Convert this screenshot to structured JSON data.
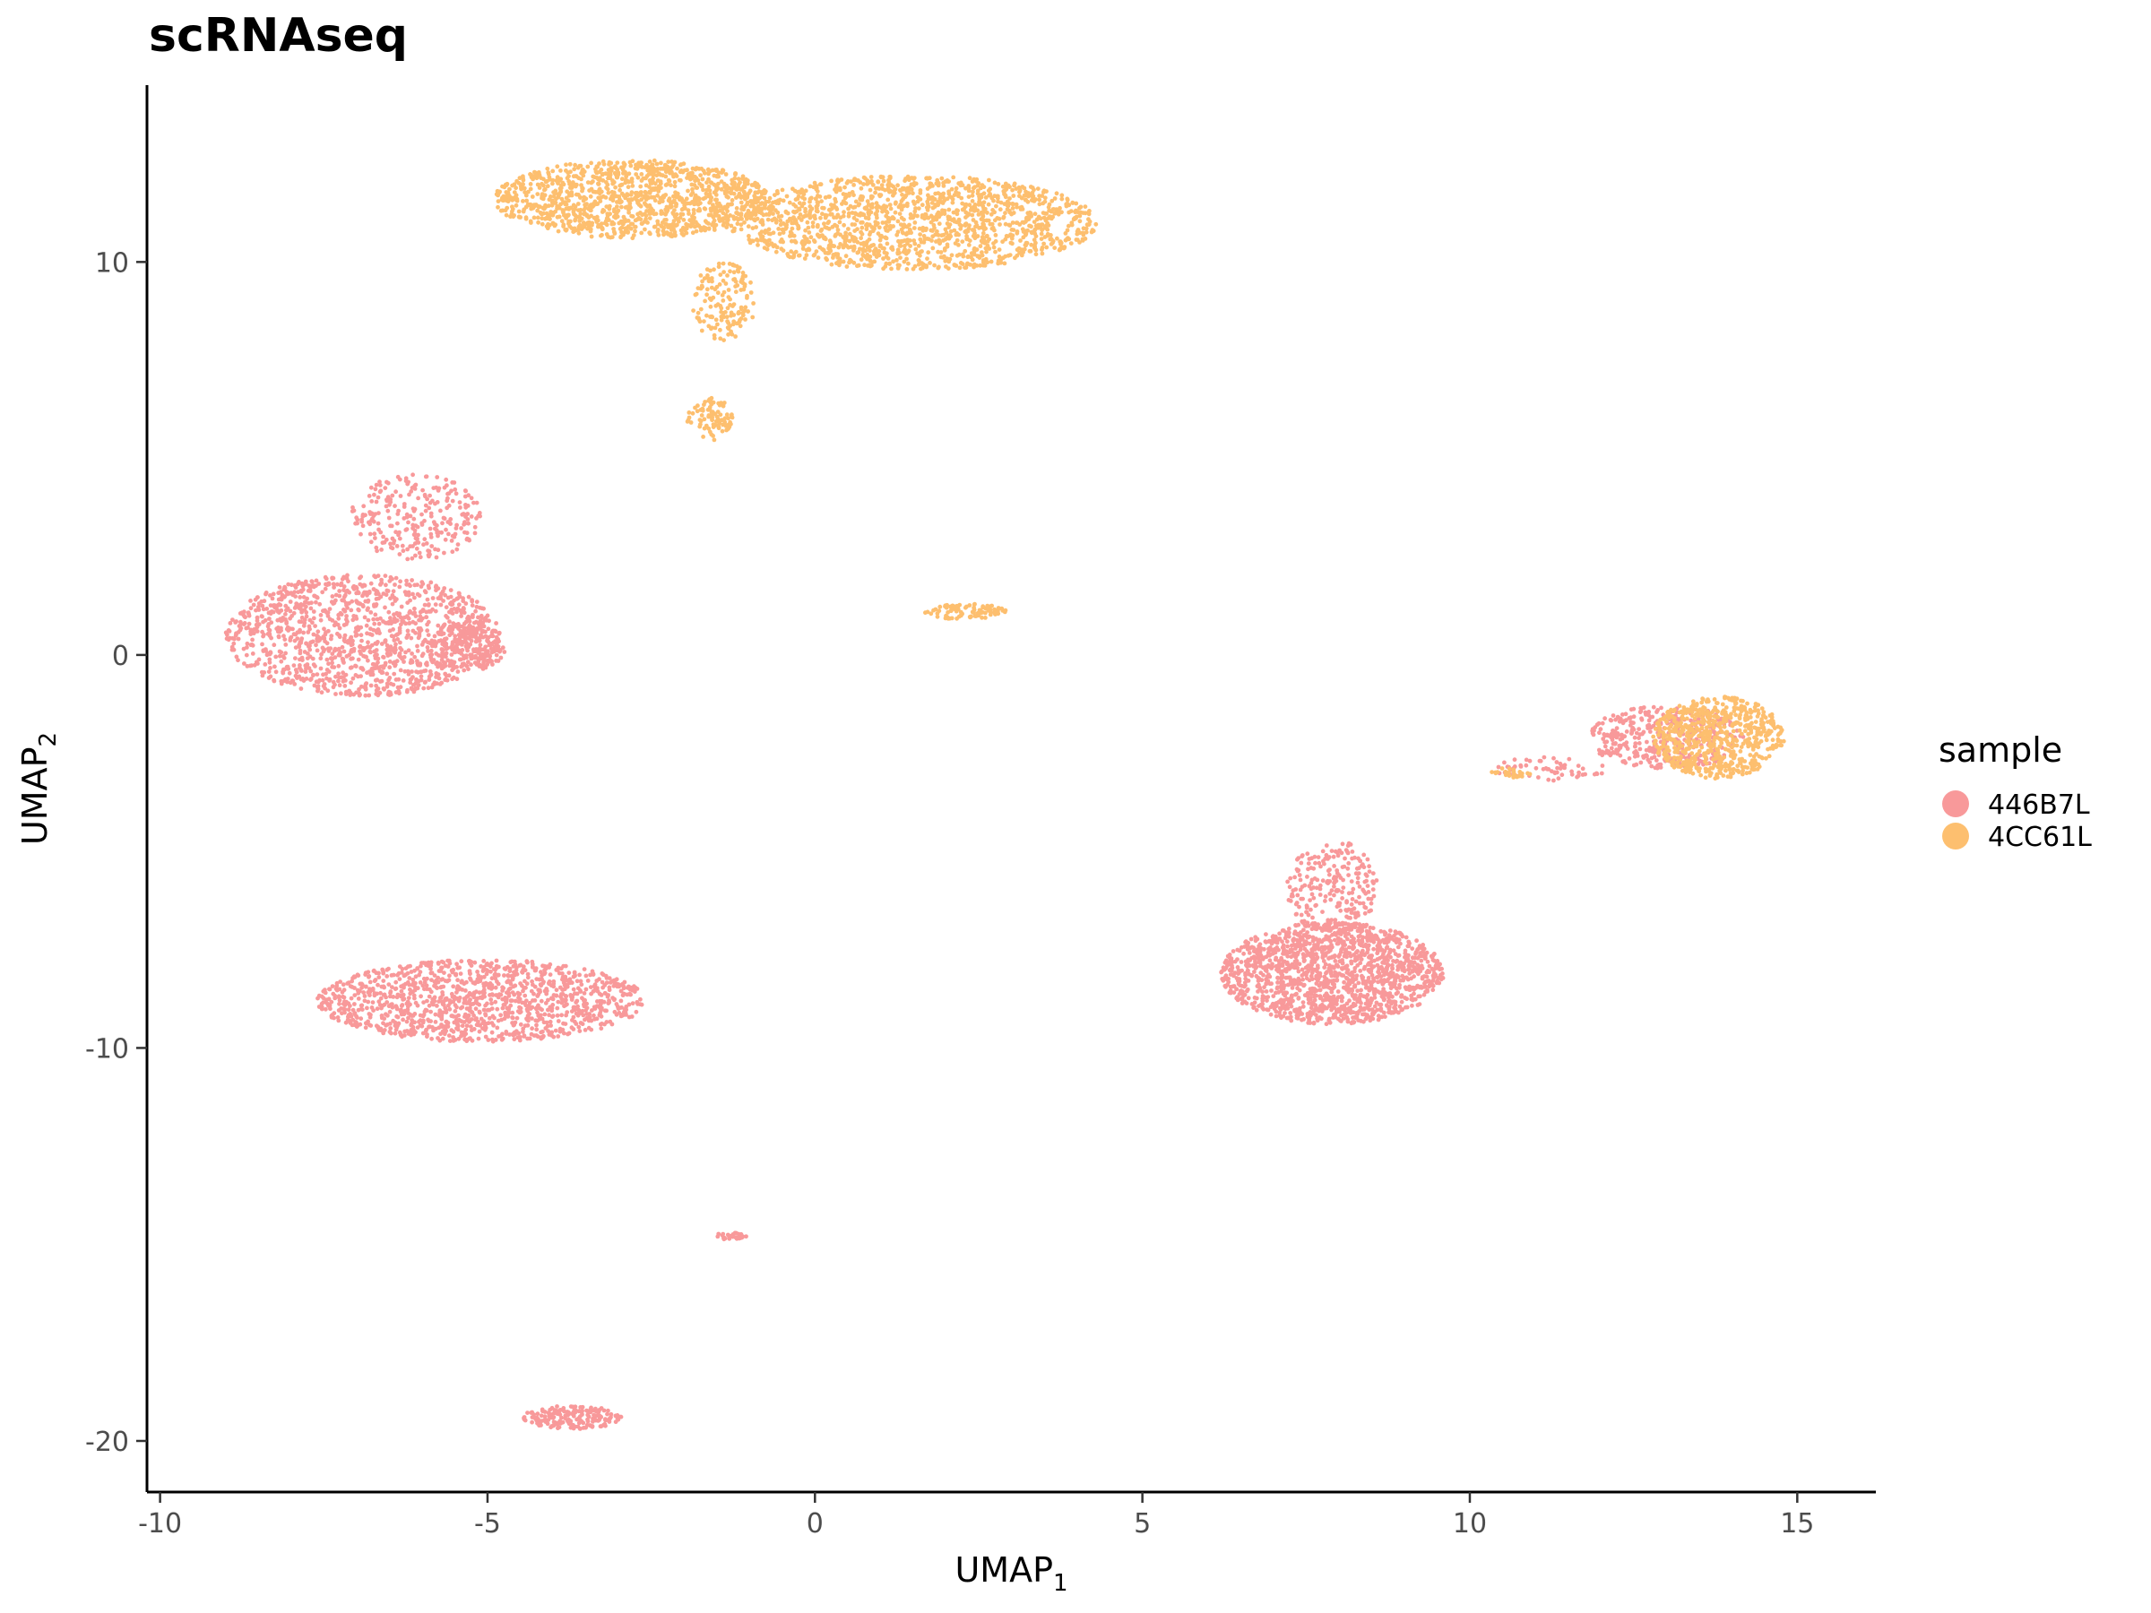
{
  "chart_data": {
    "type": "scatter",
    "title": "scRNAseq",
    "xlabel": "UMAP",
    "xlabel_sub": "1",
    "ylabel": "UMAP",
    "ylabel_sub": "2",
    "xlim": [
      -10.2,
      16.2
    ],
    "ylim": [
      -21.3,
      14.5
    ],
    "x_ticks": [
      -10,
      -5,
      0,
      5,
      10,
      15
    ],
    "x_tick_labels": [
      "-10",
      "-5",
      "0",
      "5",
      "10",
      "15"
    ],
    "y_ticks": [
      10,
      0,
      -10,
      -20
    ],
    "y_tick_labels": [
      "10",
      "0",
      "-10",
      "-20"
    ],
    "grid": false,
    "legend": {
      "title": "sample",
      "position": "right",
      "entries": [
        {
          "label": "446B7L",
          "color": "#F8999A"
        },
        {
          "label": "4CC61L",
          "color": "#FDBF6F"
        }
      ]
    },
    "series": [
      {
        "name": "446B7L",
        "color": "#F8999A",
        "clusters": [
          {
            "cx": -6.9,
            "cy": 0.5,
            "rx": 2.1,
            "ry": 1.55,
            "n": 1300
          },
          {
            "cx": -6.1,
            "cy": 3.5,
            "rx": 1.0,
            "ry": 1.1,
            "n": 260
          },
          {
            "cx": -5.3,
            "cy": 0.2,
            "rx": 0.6,
            "ry": 0.6,
            "n": 160
          },
          {
            "cx": -5.1,
            "cy": -8.8,
            "rx": 2.5,
            "ry": 1.05,
            "n": 1250
          },
          {
            "cx": 7.9,
            "cy": -8.1,
            "rx": 1.7,
            "ry": 1.3,
            "n": 1500
          },
          {
            "cx": 7.9,
            "cy": -5.9,
            "rx": 0.7,
            "ry": 1.2,
            "n": 240
          },
          {
            "cx": 13.0,
            "cy": -2.1,
            "rx": 1.2,
            "ry": 0.8,
            "n": 380
          },
          {
            "cx": 11.2,
            "cy": -2.9,
            "rx": 0.9,
            "ry": 0.3,
            "n": 60
          },
          {
            "cx": -1.3,
            "cy": -14.8,
            "rx": 0.25,
            "ry": 0.1,
            "n": 30
          },
          {
            "cx": -3.7,
            "cy": -19.4,
            "rx": 0.75,
            "ry": 0.3,
            "n": 180
          }
        ]
      },
      {
        "name": "4CC61L",
        "color": "#FDBF6F",
        "clusters": [
          {
            "cx": -2.8,
            "cy": 11.6,
            "rx": 2.1,
            "ry": 1.0,
            "n": 1200
          },
          {
            "cx": 1.5,
            "cy": 11.0,
            "rx": 2.8,
            "ry": 1.2,
            "n": 1500
          },
          {
            "cx": -1.4,
            "cy": 9.0,
            "rx": 0.5,
            "ry": 1.0,
            "n": 150
          },
          {
            "cx": -1.6,
            "cy": 6.0,
            "rx": 0.35,
            "ry": 0.55,
            "n": 90
          },
          {
            "cx": 2.3,
            "cy": 1.1,
            "rx": 0.65,
            "ry": 0.2,
            "n": 90
          },
          {
            "cx": 13.8,
            "cy": -2.1,
            "rx": 1.0,
            "ry": 1.05,
            "n": 650
          },
          {
            "cx": 10.6,
            "cy": -3.0,
            "rx": 0.35,
            "ry": 0.12,
            "n": 25
          }
        ]
      }
    ]
  }
}
